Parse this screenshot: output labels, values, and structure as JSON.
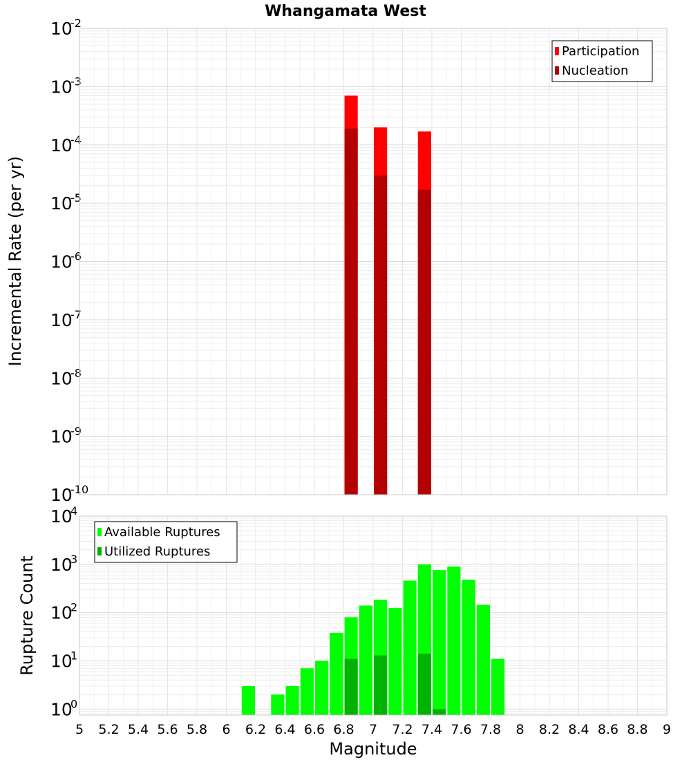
{
  "chart_data": [
    {
      "type": "bar",
      "title": "Whangamata West",
      "xlabel": "",
      "ylabel": "Incremental Rate (per yr)",
      "yscale": "log",
      "ylim": [
        1e-10,
        0.01
      ],
      "xlim": [
        5,
        9
      ],
      "ytick_exponents": [
        -10,
        -9,
        -8,
        -7,
        -6,
        -5,
        -4,
        -3,
        -2
      ],
      "grid": true,
      "legend_position": "top-right",
      "bar_width": 0.09,
      "series": [
        {
          "name": "Participation",
          "color": "#ff0000",
          "x": [
            6.85,
            7.05,
            7.35
          ],
          "values": [
            0.0007,
            0.0002,
            0.00017
          ]
        },
        {
          "name": "Nucleation",
          "color": "#b30000",
          "x": [
            6.85,
            7.05,
            7.35
          ],
          "values": [
            0.00019,
            3e-05,
            1.7e-05
          ]
        }
      ]
    },
    {
      "type": "bar",
      "title": "",
      "xlabel": "Magnitude",
      "ylabel": "Rupture Count",
      "yscale": "log",
      "ylim": [
        0.75,
        10000
      ],
      "xlim": [
        5,
        9
      ],
      "ytick_exponents": [
        0,
        1,
        2,
        3,
        4
      ],
      "xticks": [
        "5",
        "5.2",
        "5.4",
        "5.6",
        "5.8",
        "6",
        "6.2",
        "6.4",
        "6.6",
        "6.8",
        "7",
        "7.2",
        "7.4",
        "7.6",
        "7.8",
        "8",
        "8.2",
        "8.4",
        "8.6",
        "8.8",
        "9"
      ],
      "grid": true,
      "legend_position": "top-left",
      "bar_width": 0.09,
      "series": [
        {
          "name": "Available Ruptures",
          "color": "#00ff00",
          "x": [
            6.15,
            6.35,
            6.45,
            6.55,
            6.65,
            6.75,
            6.85,
            6.95,
            7.05,
            7.15,
            7.25,
            7.35,
            7.45,
            7.55,
            7.65,
            7.75,
            7.85
          ],
          "values": [
            3,
            2,
            3,
            7,
            10,
            38,
            80,
            140,
            185,
            125,
            460,
            1000,
            760,
            900,
            480,
            145,
            11
          ]
        },
        {
          "name": "Utilized Ruptures",
          "color": "#00b300",
          "x": [
            6.85,
            7.05,
            7.35,
            7.45
          ],
          "values": [
            11,
            13,
            14,
            1
          ]
        }
      ]
    }
  ]
}
